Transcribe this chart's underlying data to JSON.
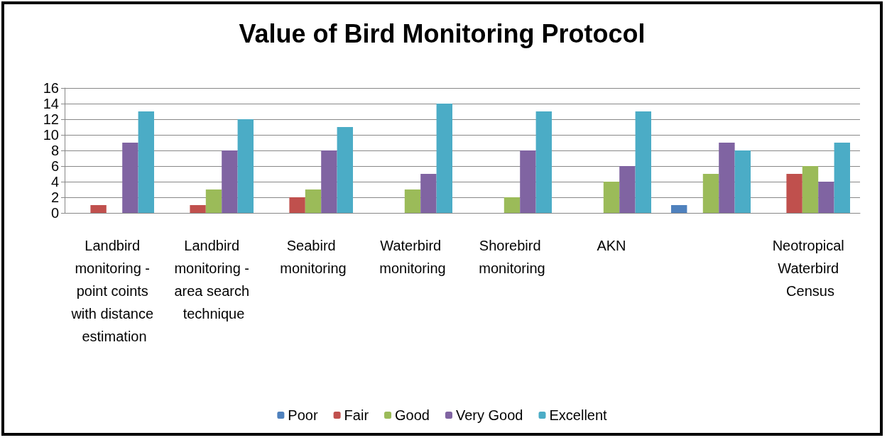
{
  "chart_data": {
    "type": "bar",
    "title": "Value of Bird Monitoring Protocol",
    "categories": [
      "Landbird monitoring - point coints with distance estimation",
      "Landbird monitoring - area search technique",
      "Seabird monitoring",
      "Waterbird monitoring",
      "Shorebird monitoring",
      "AKN",
      null,
      "Neotropical Waterbird Census"
    ],
    "series": [
      {
        "name": "Poor",
        "color": "#4f81bd",
        "values": [
          0,
          0,
          0,
          0,
          0,
          0,
          1,
          0
        ]
      },
      {
        "name": "Fair",
        "color": "#c0504d",
        "values": [
          1,
          1,
          2,
          0,
          0,
          0,
          0,
          5
        ]
      },
      {
        "name": "Good",
        "color": "#9bbb59",
        "values": [
          0,
          3,
          3,
          3,
          2,
          4,
          5,
          6
        ]
      },
      {
        "name": "Very Good",
        "color": "#8064a2",
        "values": [
          9,
          8,
          8,
          5,
          8,
          6,
          9,
          4
        ]
      },
      {
        "name": "Excellent",
        "color": "#4bacc6",
        "values": [
          13,
          12,
          11,
          14,
          13,
          13,
          8,
          9
        ]
      }
    ],
    "ylim": [
      0,
      16
    ],
    "yticks": [
      0,
      2,
      4,
      6,
      8,
      10,
      12,
      14,
      16
    ],
    "grid": "y",
    "legend": "bottom"
  }
}
